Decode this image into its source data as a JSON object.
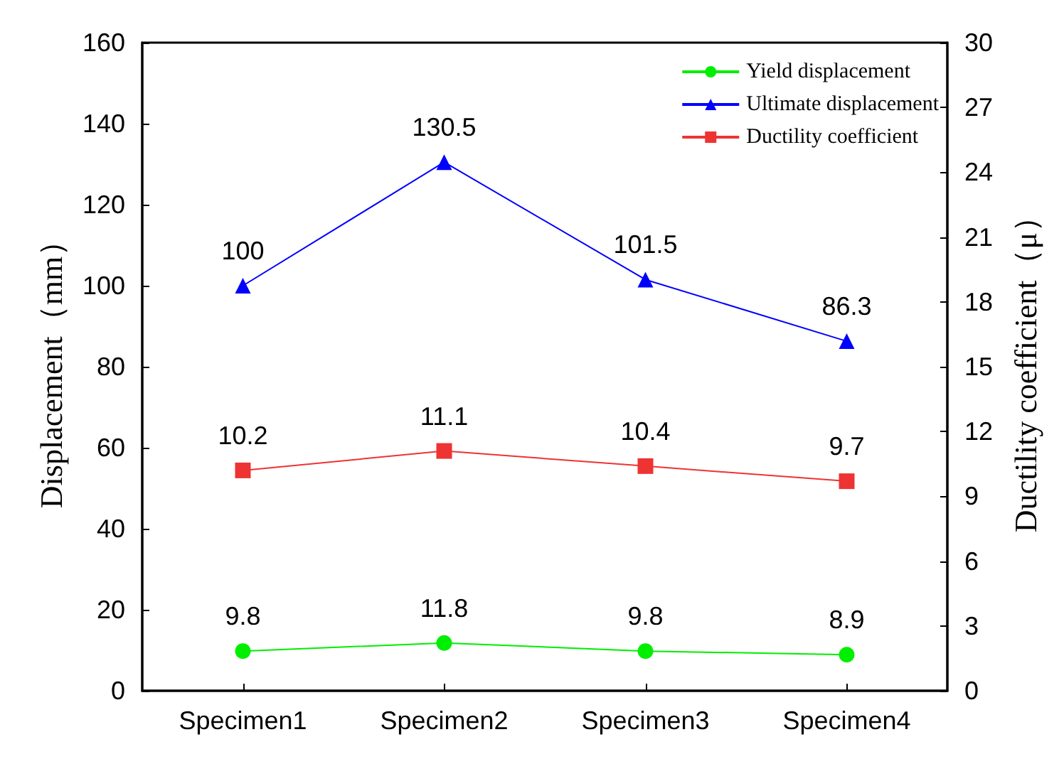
{
  "chart_data": {
    "type": "line",
    "ylabel": "Displacement（mm）",
    "y2label": "Ductility coefficient（μ）",
    "categories": [
      "Specimen1",
      "Specimen2",
      "Specimen3",
      "Specimen4"
    ],
    "series": [
      {
        "name": "Yield displacement",
        "color": "#00ee00",
        "marker": "circle",
        "values": [
          9.8,
          11.8,
          9.8,
          8.9
        ]
      },
      {
        "name": "Ultimate displacement",
        "color": "#0000ff",
        "marker": "triangle",
        "values": [
          100,
          130.5,
          101.5,
          86.3
        ]
      },
      {
        "name": "Ductility coefficient",
        "color": "#ee3333",
        "marker": "square",
        "axis": "y2",
        "values": [
          10.2,
          11.1,
          10.4,
          9.7
        ]
      }
    ],
    "ylim": [
      0,
      160
    ],
    "yticks": [
      0,
      20,
      40,
      60,
      80,
      100,
      120,
      140,
      160
    ],
    "y2lim": [
      0,
      30
    ],
    "y2ticks": [
      0,
      3,
      6,
      9,
      12,
      15,
      18,
      21,
      24,
      27,
      30
    ],
    "data_labels": true,
    "legend": "top right",
    "grid": false
  }
}
